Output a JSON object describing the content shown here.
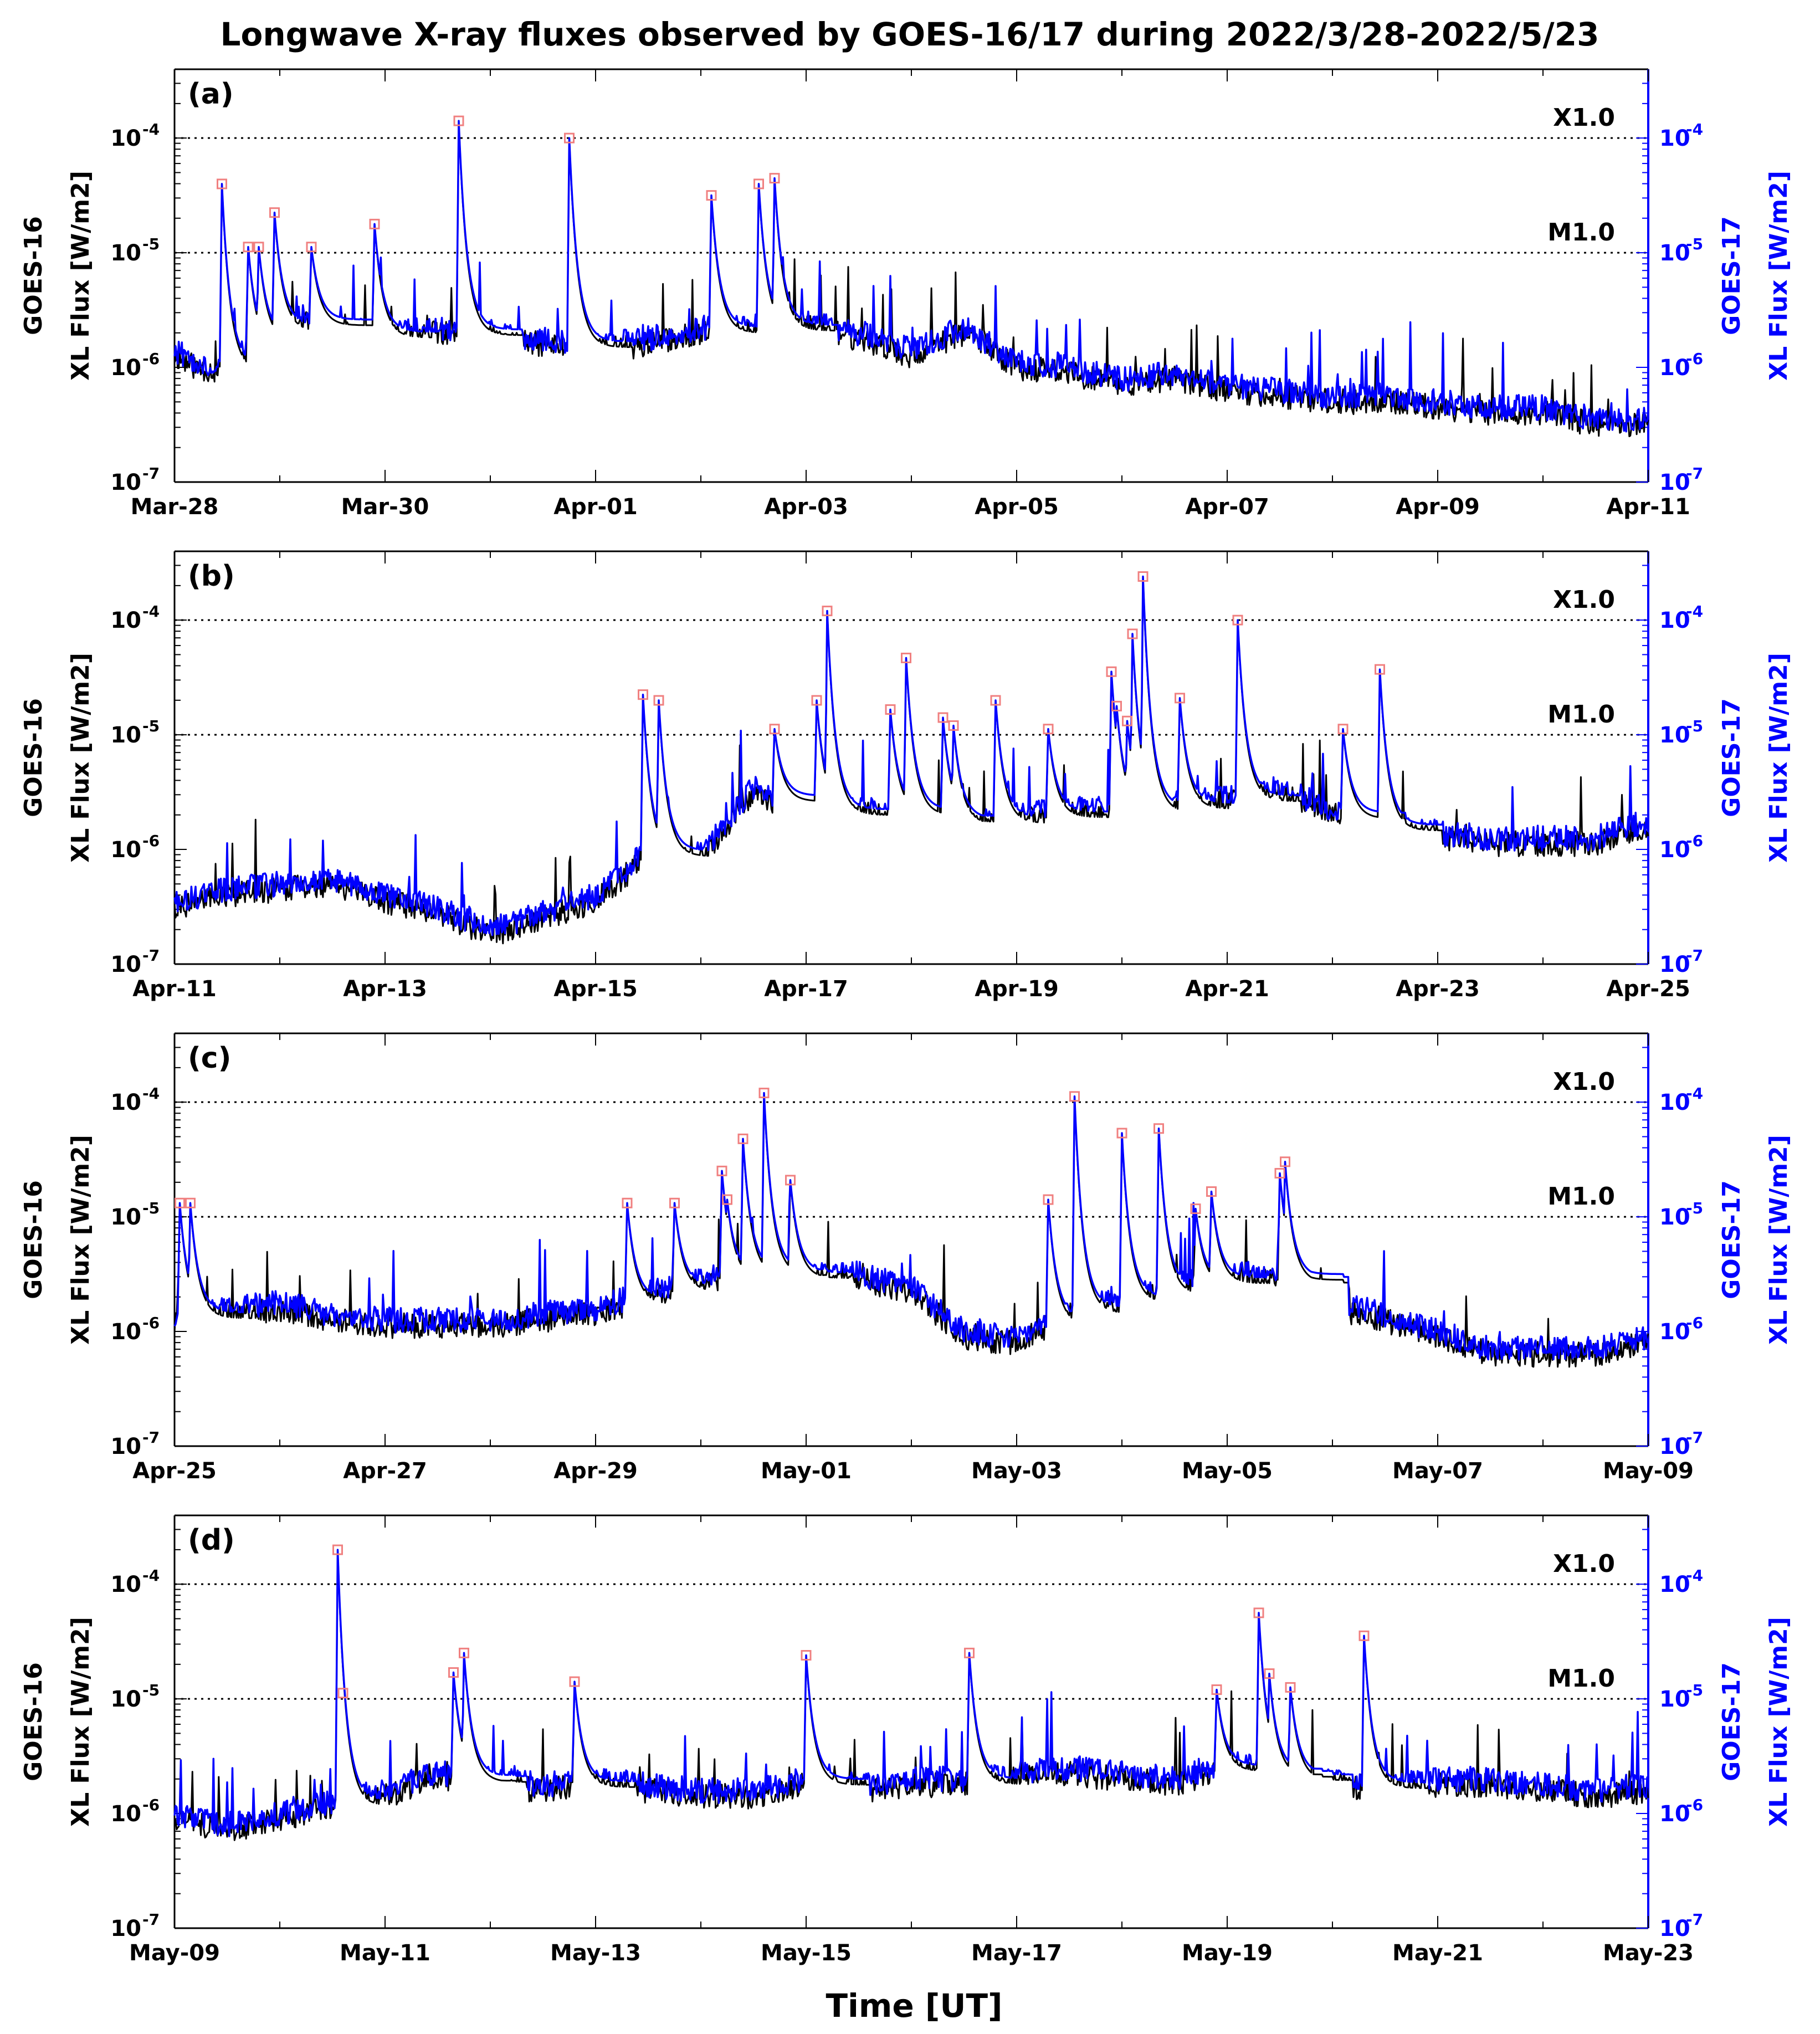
{
  "chart_data": [
    {
      "type": "line",
      "panel_label": "(a)",
      "x_ticks": [
        "Mar-28",
        "Mar-30",
        "Apr-01",
        "Apr-03",
        "Apr-05",
        "Apr-07",
        "Apr-09",
        "Apr-11"
      ],
      "y_left_label": "GOES-16",
      "y_left_unit": "XL Flux [W/m2]",
      "y_right_label": "GOES-17",
      "y_right_unit": "XL Flux [W/m2]",
      "ylim_log10": [
        -7,
        -3.4
      ],
      "threshold_labels": [
        "X1.0",
        "M1.0"
      ],
      "series": [
        {
          "name": "GOES-16",
          "color": "#000000",
          "x_days": [
            0,
            0.2,
            0.5,
            0.9,
            1.2,
            1.5,
            2,
            2.5,
            3,
            3.5,
            4,
            4.5,
            5,
            5.5,
            6,
            6.5,
            7,
            7.5,
            8,
            8.5,
            9,
            9.5,
            10,
            10.5,
            11,
            11.5,
            12,
            12.5,
            13,
            13.5,
            14
          ],
          "log_flux": [
            -5.9,
            -6,
            -6.05,
            -5.7,
            -5.6,
            -5.7,
            -5.75,
            -5.7,
            -5.75,
            -5.8,
            -5.85,
            -5.8,
            -5.7,
            -5.7,
            -5.65,
            -5.75,
            -5.9,
            -5.7,
            -6,
            -6.05,
            -6.15,
            -6.1,
            -6.2,
            -6.25,
            -6.3,
            -6.3,
            -6.35,
            -6.4,
            -6.4,
            -6.5,
            -6.5
          ]
        },
        {
          "name": "GOES-17",
          "color": "#0000ff",
          "x_days": [
            0,
            0.2,
            0.5,
            0.9,
            1.2,
            1.5,
            2,
            2.5,
            3,
            3.5,
            4,
            4.5,
            5,
            5.5,
            6,
            6.5,
            7,
            7.5,
            8,
            8.5,
            9,
            9.5,
            10,
            10.5,
            11,
            11.5,
            12,
            12.5,
            13,
            13.5,
            14
          ],
          "log_flux": [
            -5.85,
            -5.95,
            -6,
            -5.65,
            -5.55,
            -5.65,
            -5.7,
            -5.65,
            -5.7,
            -5.75,
            -5.8,
            -5.75,
            -5.65,
            -5.65,
            -5.6,
            -5.7,
            -5.85,
            -5.65,
            -5.95,
            -6,
            -6.1,
            -6.05,
            -6.15,
            -6.2,
            -6.25,
            -6.25,
            -6.3,
            -6.35,
            -6.35,
            -6.45,
            -6.45
          ]
        }
      ],
      "flares": [
        {
          "x_days": 0.45,
          "log_flux": -4.4
        },
        {
          "x_days": 0.7,
          "log_flux": -4.95
        },
        {
          "x_days": 0.8,
          "log_flux": -4.95
        },
        {
          "x_days": 0.95,
          "log_flux": -4.65
        },
        {
          "x_days": 1.3,
          "log_flux": -4.95
        },
        {
          "x_days": 1.9,
          "log_flux": -4.75
        },
        {
          "x_days": 2.7,
          "log_flux": -3.85
        },
        {
          "x_days": 3.75,
          "log_flux": -4.0
        },
        {
          "x_days": 5.1,
          "log_flux": -4.5
        },
        {
          "x_days": 5.55,
          "log_flux": -4.4
        },
        {
          "x_days": 5.7,
          "log_flux": -4.35
        }
      ]
    },
    {
      "type": "line",
      "panel_label": "(b)",
      "x_ticks": [
        "Apr-11",
        "Apr-13",
        "Apr-15",
        "Apr-17",
        "Apr-19",
        "Apr-21",
        "Apr-23",
        "Apr-25"
      ],
      "y_left_label": "GOES-16",
      "y_left_unit": "XL Flux [W/m2]",
      "y_right_label": "GOES-17",
      "y_right_unit": "XL Flux [W/m2]",
      "ylim_log10": [
        -7,
        -3.4
      ],
      "threshold_labels": [
        "X1.0",
        "M1.0"
      ],
      "series": [
        {
          "name": "GOES-16",
          "color": "#000000",
          "x_days": [
            0,
            0.5,
            1,
            1.5,
            2,
            2.5,
            3,
            3.5,
            4,
            4.5,
            5,
            5.5,
            6,
            6.5,
            7,
            7.5,
            8,
            8.5,
            9,
            9.5,
            10,
            10.5,
            11,
            11.5,
            12,
            12.5,
            13,
            13.5,
            14
          ],
          "log_flux": [
            -6.5,
            -6.4,
            -6.35,
            -6.3,
            -6.45,
            -6.55,
            -6.75,
            -6.6,
            -6.45,
            -6.05,
            -6.1,
            -5.5,
            -5.7,
            -5.7,
            -5.7,
            -5.8,
            -5.75,
            -5.7,
            -5.7,
            -5.65,
            -5.6,
            -5.5,
            -5.7,
            -5.85,
            -5.9,
            -5.95,
            -5.95,
            -5.95,
            -5.8
          ]
        },
        {
          "name": "GOES-17",
          "color": "#0000ff",
          "x_days": [
            0,
            0.5,
            1,
            1.5,
            2,
            2.5,
            3,
            3.5,
            4,
            4.5,
            5,
            5.5,
            6,
            6.5,
            7,
            7.5,
            8,
            8.5,
            9,
            9.5,
            10,
            10.5,
            11,
            11.5,
            12,
            12.5,
            13,
            13.5,
            14
          ],
          "log_flux": [
            -6.45,
            -6.35,
            -6.3,
            -6.25,
            -6.4,
            -6.5,
            -6.7,
            -6.55,
            -6.4,
            -6.0,
            -6.05,
            -5.45,
            -5.65,
            -5.65,
            -5.65,
            -5.75,
            -5.7,
            -5.65,
            -5.65,
            -5.6,
            -5.55,
            -5.45,
            -5.65,
            -5.8,
            -5.85,
            -5.9,
            -5.9,
            -5.9,
            -5.75
          ]
        }
      ],
      "flares": [
        {
          "x_days": 4.45,
          "log_flux": -4.65
        },
        {
          "x_days": 4.6,
          "log_flux": -4.7
        },
        {
          "x_days": 5.7,
          "log_flux": -4.95
        },
        {
          "x_days": 6.1,
          "log_flux": -4.7
        },
        {
          "x_days": 6.2,
          "log_flux": -3.92
        },
        {
          "x_days": 6.8,
          "log_flux": -4.78
        },
        {
          "x_days": 6.95,
          "log_flux": -4.33
        },
        {
          "x_days": 7.3,
          "log_flux": -4.85
        },
        {
          "x_days": 7.4,
          "log_flux": -4.92
        },
        {
          "x_days": 7.8,
          "log_flux": -4.7
        },
        {
          "x_days": 8.3,
          "log_flux": -4.95
        },
        {
          "x_days": 8.9,
          "log_flux": -4.45
        },
        {
          "x_days": 8.95,
          "log_flux": -4.75
        },
        {
          "x_days": 9.05,
          "log_flux": -4.88
        },
        {
          "x_days": 9.1,
          "log_flux": -4.12
        },
        {
          "x_days": 9.2,
          "log_flux": -3.62
        },
        {
          "x_days": 9.55,
          "log_flux": -4.68
        },
        {
          "x_days": 10.1,
          "log_flux": -4.0
        },
        {
          "x_days": 11.1,
          "log_flux": -4.95
        },
        {
          "x_days": 11.45,
          "log_flux": -4.43
        }
      ]
    },
    {
      "type": "line",
      "panel_label": "(c)",
      "x_ticks": [
        "Apr-25",
        "Apr-27",
        "Apr-29",
        "May-01",
        "May-03",
        "May-05",
        "May-07",
        "May-09"
      ],
      "y_left_label": "GOES-16",
      "y_left_unit": "XL Flux [W/m2]",
      "y_right_label": "GOES-17",
      "y_right_unit": "XL Flux [W/m2]",
      "ylim_log10": [
        -7,
        -3.4
      ],
      "threshold_labels": [
        "X1.0",
        "M1.0"
      ],
      "series": [
        {
          "name": "GOES-16",
          "color": "#000000",
          "x_days": [
            0,
            0.5,
            1,
            1.5,
            2,
            2.5,
            3,
            3.5,
            4,
            4.5,
            5,
            5.5,
            6,
            6.5,
            7,
            7.5,
            8,
            8.5,
            9,
            9.5,
            10,
            10.5,
            11,
            11.5,
            12,
            12.5,
            13,
            13.5,
            14
          ],
          "log_flux": [
            -5.9,
            -5.85,
            -5.8,
            -5.9,
            -5.95,
            -5.95,
            -5.95,
            -5.9,
            -5.85,
            -5.7,
            -5.6,
            -5.5,
            -5.55,
            -5.55,
            -5.65,
            -6.05,
            -6.1,
            -5.85,
            -5.75,
            -5.65,
            -5.55,
            -5.55,
            -5.8,
            -5.9,
            -6.05,
            -6.2,
            -6.2,
            -6.2,
            -6.1
          ]
        },
        {
          "name": "GOES-17",
          "color": "#0000ff",
          "x_days": [
            0,
            0.5,
            1,
            1.5,
            2,
            2.5,
            3,
            3.5,
            4,
            4.5,
            5,
            5.5,
            6,
            6.5,
            7,
            7.5,
            8,
            8.5,
            9,
            9.5,
            10,
            10.5,
            11,
            11.5,
            12,
            12.5,
            13,
            13.5,
            14
          ],
          "log_flux": [
            -5.85,
            -5.8,
            -5.75,
            -5.85,
            -5.9,
            -5.9,
            -5.9,
            -5.85,
            -5.8,
            -5.65,
            -5.55,
            -5.45,
            -5.5,
            -5.5,
            -5.6,
            -6.0,
            -6.05,
            -5.8,
            -5.7,
            -5.6,
            -5.5,
            -5.5,
            -5.75,
            -5.85,
            -6.0,
            -6.15,
            -6.15,
            -6.15,
            -6.05
          ]
        }
      ],
      "flares": [
        {
          "x_days": 0.05,
          "log_flux": -4.88
        },
        {
          "x_days": 0.15,
          "log_flux": -4.88
        },
        {
          "x_days": 4.3,
          "log_flux": -4.88
        },
        {
          "x_days": 4.75,
          "log_flux": -4.88
        },
        {
          "x_days": 5.2,
          "log_flux": -4.6
        },
        {
          "x_days": 5.25,
          "log_flux": -4.85
        },
        {
          "x_days": 5.4,
          "log_flux": -4.32
        },
        {
          "x_days": 5.6,
          "log_flux": -3.92
        },
        {
          "x_days": 5.85,
          "log_flux": -4.68
        },
        {
          "x_days": 8.3,
          "log_flux": -4.85
        },
        {
          "x_days": 8.55,
          "log_flux": -3.95
        },
        {
          "x_days": 9.0,
          "log_flux": -4.27
        },
        {
          "x_days": 9.35,
          "log_flux": -4.23
        },
        {
          "x_days": 9.7,
          "log_flux": -4.93
        },
        {
          "x_days": 9.85,
          "log_flux": -4.78
        },
        {
          "x_days": 10.5,
          "log_flux": -4.62
        },
        {
          "x_days": 10.55,
          "log_flux": -4.52
        }
      ]
    },
    {
      "type": "line",
      "panel_label": "(d)",
      "x_ticks": [
        "May-09",
        "May-11",
        "May-13",
        "May-15",
        "May-17",
        "May-19",
        "May-21",
        "May-23"
      ],
      "y_left_label": "GOES-16",
      "y_left_unit": "XL Flux [W/m2]",
      "y_right_label": "GOES-17",
      "y_right_unit": "XL Flux [W/m2]",
      "ylim_log10": [
        -7,
        -3.4
      ],
      "threshold_labels": [
        "X1.0",
        "M1.0"
      ],
      "series": [
        {
          "name": "GOES-16",
          "color": "#000000",
          "x_days": [
            0,
            0.5,
            1,
            1.5,
            2,
            2.5,
            3,
            3.5,
            4,
            4.5,
            5,
            5.5,
            6,
            6.5,
            7,
            7.5,
            8,
            8.5,
            9,
            9.5,
            10,
            10.5,
            11,
            11.5,
            12,
            12.5,
            13,
            13.5,
            14
          ],
          "log_flux": [
            -6.05,
            -6.15,
            -6.05,
            -5.95,
            -5.85,
            -5.7,
            -5.75,
            -5.8,
            -5.75,
            -5.8,
            -5.85,
            -5.85,
            -5.75,
            -5.8,
            -5.75,
            -5.75,
            -5.7,
            -5.65,
            -5.7,
            -5.75,
            -5.6,
            -5.7,
            -5.75,
            -5.8,
            -5.75,
            -5.75,
            -5.8,
            -5.85,
            -5.8
          ]
        },
        {
          "name": "GOES-17",
          "color": "#0000ff",
          "x_days": [
            0,
            0.5,
            1,
            1.5,
            2,
            2.5,
            3,
            3.5,
            4,
            4.5,
            5,
            5.5,
            6,
            6.5,
            7,
            7.5,
            8,
            8.5,
            9,
            9.5,
            10,
            10.5,
            11,
            11.5,
            12,
            12.5,
            13,
            13.5,
            14
          ],
          "log_flux": [
            -6.0,
            -6.1,
            -6.0,
            -5.9,
            -5.8,
            -5.65,
            -5.7,
            -5.75,
            -5.7,
            -5.75,
            -5.8,
            -5.8,
            -5.7,
            -5.75,
            -5.7,
            -5.7,
            -5.65,
            -5.6,
            -5.65,
            -5.7,
            -5.55,
            -5.65,
            -5.7,
            -5.75,
            -5.7,
            -5.7,
            -5.75,
            -5.8,
            -5.75
          ]
        }
      ],
      "flares": [
        {
          "x_days": 1.55,
          "log_flux": -3.7
        },
        {
          "x_days": 1.6,
          "log_flux": -4.95
        },
        {
          "x_days": 2.65,
          "log_flux": -4.77
        },
        {
          "x_days": 2.75,
          "log_flux": -4.6
        },
        {
          "x_days": 3.8,
          "log_flux": -4.85
        },
        {
          "x_days": 6.0,
          "log_flux": -4.62
        },
        {
          "x_days": 7.55,
          "log_flux": -4.6
        },
        {
          "x_days": 9.9,
          "log_flux": -4.92
        },
        {
          "x_days": 10.3,
          "log_flux": -4.25
        },
        {
          "x_days": 10.4,
          "log_flux": -4.78
        },
        {
          "x_days": 10.6,
          "log_flux": -4.9
        },
        {
          "x_days": 11.3,
          "log_flux": -4.45
        }
      ]
    }
  ],
  "figure": {
    "title": "Longwave X-ray fluxes observed by GOES-16/17 during 2022/3/28-2022/5/23",
    "xlabel": "Time [UT]",
    "y_tick_labels": [
      "10",
      "10",
      "10",
      "10"
    ],
    "y_tick_exponents": [
      "-4",
      "-5",
      "-6",
      "-7"
    ],
    "colors": {
      "goes16": "#000000",
      "goes17": "#0000ff",
      "flare_marker": "#f08080",
      "threshold": "#000000",
      "right_axis": "#0000ff"
    }
  }
}
